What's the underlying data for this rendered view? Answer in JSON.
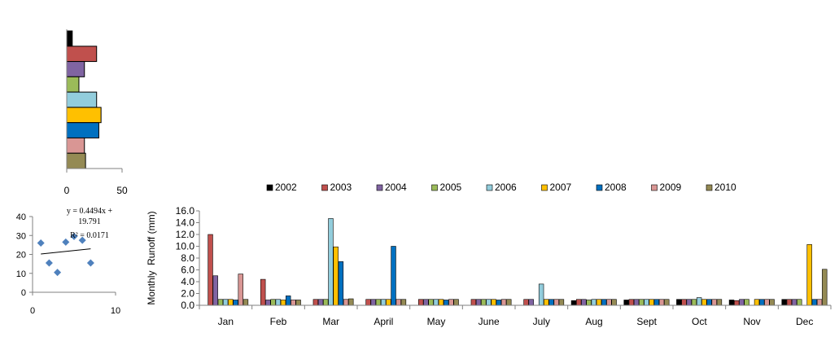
{
  "chart_data": [
    {
      "type": "bar",
      "orientation": "horizontal",
      "categories": [
        "2002",
        "2003",
        "2004",
        "2005",
        "2006",
        "2007",
        "2008",
        "2009",
        "2010"
      ],
      "values": [
        5,
        27,
        16,
        11,
        27,
        31,
        29,
        16,
        17
      ],
      "colors": [
        "#000000",
        "#C0504D",
        "#8064A2",
        "#9BBB59",
        "#92CDDC",
        "#FFC000",
        "#0070C0",
        "#D99694",
        "#948A54"
      ],
      "xlim": [
        0,
        50
      ],
      "xticks": [
        "0",
        "50"
      ],
      "grid": false
    },
    {
      "type": "scatter",
      "points": [
        [
          1,
          26
        ],
        [
          2,
          15.5
        ],
        [
          3,
          10.5
        ],
        [
          4,
          26.5
        ],
        [
          5,
          29.5
        ],
        [
          6,
          27.5
        ],
        [
          7,
          15.5
        ]
      ],
      "xlim": [
        0,
        10
      ],
      "ylim": [
        0,
        40
      ],
      "xticks": [
        "0",
        "10"
      ],
      "yticks": [
        "0",
        "10",
        "20",
        "30",
        "40"
      ],
      "trendline": {
        "slope": 0.4494,
        "intercept": 19.791
      },
      "annotation": [
        "y = 0.4494x +",
        "19.791",
        "R² = 0.0171"
      ],
      "marker_color": "#4F81BD",
      "grid": false
    },
    {
      "type": "bar",
      "categories": [
        "Jan",
        "Feb",
        "Mar",
        "April",
        "May",
        "June",
        "July",
        "Aug",
        "Sept",
        "Oct",
        "Nov",
        "Dec"
      ],
      "series": [
        {
          "name": "2002",
          "color": "#000000",
          "values": [
            0,
            0,
            0,
            0,
            0,
            0,
            0,
            0.8,
            0.9,
            1.0,
            0.9,
            1.0
          ]
        },
        {
          "name": "2003",
          "color": "#C0504D",
          "values": [
            12.0,
            4.4,
            1.0,
            1.0,
            1.0,
            1.0,
            1.0,
            1.0,
            1.0,
            1.0,
            0.8,
            1.0
          ]
        },
        {
          "name": "2004",
          "color": "#8064A2",
          "values": [
            5.0,
            0.9,
            1.0,
            1.0,
            1.0,
            1.0,
            1.0,
            1.0,
            1.0,
            1.0,
            1.0,
            1.0
          ]
        },
        {
          "name": "2005",
          "color": "#9BBB59",
          "values": [
            1.0,
            1.0,
            1.0,
            1.0,
            1.0,
            1.0,
            0,
            0.9,
            1.0,
            1.0,
            1.0,
            1.0
          ]
        },
        {
          "name": "2006",
          "color": "#92CDDC",
          "values": [
            1.0,
            1.0,
            14.7,
            1.0,
            1.0,
            1.0,
            3.6,
            1.0,
            1.0,
            1.3,
            0,
            0
          ]
        },
        {
          "name": "2007",
          "color": "#FFC000",
          "values": [
            1.0,
            0.9,
            9.9,
            1.0,
            1.0,
            1.0,
            1.0,
            1.0,
            1.0,
            1.0,
            1.0,
            10.3
          ]
        },
        {
          "name": "2008",
          "color": "#0070C0",
          "values": [
            0.9,
            1.6,
            7.4,
            10.0,
            0.9,
            0.9,
            1.0,
            1.0,
            1.0,
            1.0,
            1.0,
            1.0
          ]
        },
        {
          "name": "2009",
          "color": "#D99694",
          "values": [
            5.3,
            0.9,
            1.0,
            1.0,
            1.0,
            1.0,
            1.0,
            1.0,
            1.0,
            1.0,
            1.0,
            1.0
          ]
        },
        {
          "name": "2010",
          "color": "#948A54",
          "values": [
            1.0,
            0.9,
            1.1,
            1.0,
            1.0,
            1.0,
            1.0,
            1.0,
            1.0,
            1.0,
            1.0,
            6.1
          ]
        }
      ],
      "ylabel": "Monthly  Runoff (mm)",
      "ylim": [
        0,
        16
      ],
      "yticks": [
        "0.0",
        "2.0",
        "4.0",
        "6.0",
        "8.0",
        "10.0",
        "12.0",
        "14.0",
        "16.0"
      ],
      "legend": "top",
      "grid": false
    }
  ]
}
